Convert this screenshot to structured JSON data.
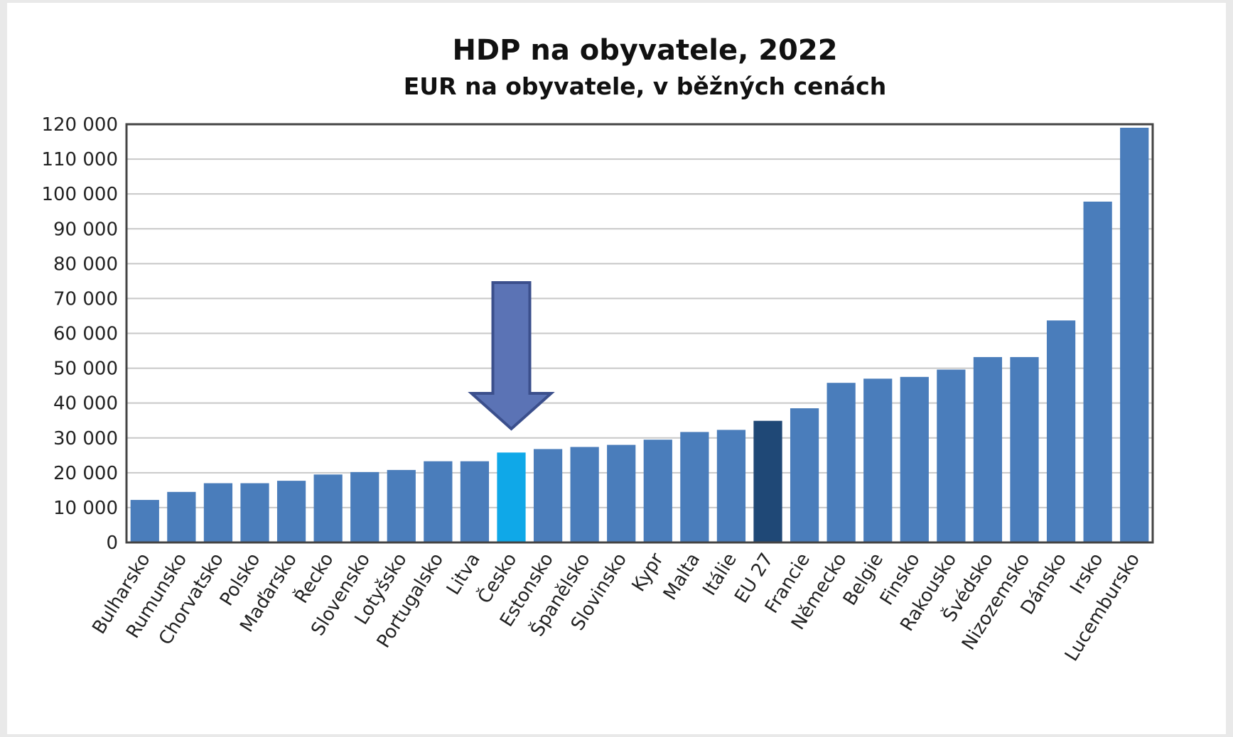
{
  "chart_data": {
    "type": "bar",
    "title": "HDP na obyvatele, 2022",
    "subtitle": "EUR na obyvatele, v běžných cenách",
    "categories": [
      "Bulharsko",
      "Rumunsko",
      "Chorvatsko",
      "Polsko",
      "Maďarsko",
      "Řecko",
      "Slovensko",
      "Lotyšsko",
      "Portugalsko",
      "Litva",
      "Česko",
      "Estonsko",
      "Španělsko",
      "Slovinsko",
      "Kypr",
      "Malta",
      "Itálie",
      "EU 27",
      "Francie",
      "Německo",
      "Belgie",
      "Finsko",
      "Rakousko",
      "Švédsko",
      "Nizozemsko",
      "Dánsko",
      "Irsko",
      "Lucembursko"
    ],
    "values": [
      12200,
      14500,
      17000,
      17000,
      17700,
      19500,
      20200,
      20800,
      23300,
      23300,
      25800,
      26800,
      27400,
      28000,
      29500,
      31700,
      32300,
      34900,
      38500,
      45800,
      47000,
      47500,
      49600,
      53200,
      53200,
      63700,
      97800,
      119000
    ],
    "ylim": [
      0,
      120000
    ],
    "yticks": [
      0,
      10000,
      20000,
      30000,
      40000,
      50000,
      60000,
      70000,
      80000,
      90000,
      100000,
      110000,
      120000
    ],
    "ytick_labels": [
      "0",
      "10 000",
      "20 000",
      "30 000",
      "40 000",
      "50 000",
      "60 000",
      "70 000",
      "80 000",
      "90 000",
      "100 000",
      "110 000",
      "120 000"
    ],
    "grid": true,
    "colors": {
      "default": "#4a7dbb",
      "highlight": "#0fa8e8",
      "eu": "#1f4876",
      "arrow_fill": "#5b73b5",
      "arrow_stroke": "#3b4f8c"
    },
    "highlight_category": "Česko",
    "eu_category": "EU 27",
    "annotation": "arrow-pointing-down-at-Česko"
  }
}
